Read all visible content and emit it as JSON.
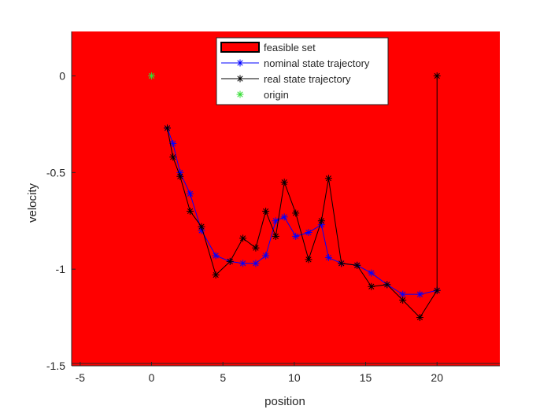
{
  "chart_data": {
    "type": "line",
    "xlabel": "position",
    "ylabel": "velocity",
    "xlim": [
      -5.6,
      24.4
    ],
    "ylim": [
      -1.5,
      0.23
    ],
    "xticks": [
      -5,
      0,
      5,
      10,
      15,
      20
    ],
    "xtick_labels": [
      "-5",
      "0",
      "5",
      "10",
      "15",
      "20"
    ],
    "yticks": [
      0,
      -0.5,
      -1,
      -1.5
    ],
    "ytick_labels": [
      "0",
      "-0.5",
      "-1",
      "-1.5"
    ],
    "grid": false,
    "legend_position": "top-center",
    "feasible_set": {
      "name": "feasible set",
      "color": "#ff0000",
      "x_range": [
        -5.6,
        24.4
      ],
      "y_range": [
        -1.5,
        0.23
      ]
    },
    "series": [
      {
        "name": "nominal state trajectory",
        "color": "#0000ff",
        "marker": "asterisk",
        "x": [
          1.1,
          1.5,
          2.0,
          2.7,
          3.5,
          4.5,
          5.5,
          6.4,
          7.3,
          8.0,
          8.7,
          9.3,
          10.1,
          11.0,
          11.9,
          12.4,
          13.3,
          14.4,
          15.4,
          16.5,
          17.6,
          18.8,
          20.0
        ],
        "y": [
          -0.27,
          -0.35,
          -0.5,
          -0.61,
          -0.8,
          -0.93,
          -0.96,
          -0.97,
          -0.97,
          -0.93,
          -0.75,
          -0.73,
          -0.83,
          -0.81,
          -0.77,
          -0.94,
          -0.97,
          -0.98,
          -1.02,
          -1.08,
          -1.13,
          -1.13,
          -1.11
        ]
      },
      {
        "name": "real state trajectory",
        "color": "#000000",
        "marker": "asterisk",
        "x": [
          1.1,
          1.5,
          2.0,
          2.7,
          3.5,
          4.5,
          5.5,
          6.4,
          7.3,
          8.0,
          8.7,
          9.3,
          10.1,
          11.0,
          11.9,
          12.4,
          13.3,
          14.4,
          15.4,
          16.5,
          17.6,
          18.8,
          20.0,
          20.0
        ],
        "y": [
          -0.27,
          -0.42,
          -0.52,
          -0.7,
          -0.78,
          -1.03,
          -0.96,
          -0.84,
          -0.89,
          -0.7,
          -0.83,
          -0.55,
          -0.71,
          -0.95,
          -0.75,
          -0.53,
          -0.97,
          -0.98,
          -1.09,
          -1.08,
          -1.16,
          -1.25,
          -1.11,
          0.0
        ]
      },
      {
        "name": "origin",
        "color": "#33dd33",
        "marker": "asterisk",
        "x": [
          0
        ],
        "y": [
          0
        ]
      }
    ]
  }
}
